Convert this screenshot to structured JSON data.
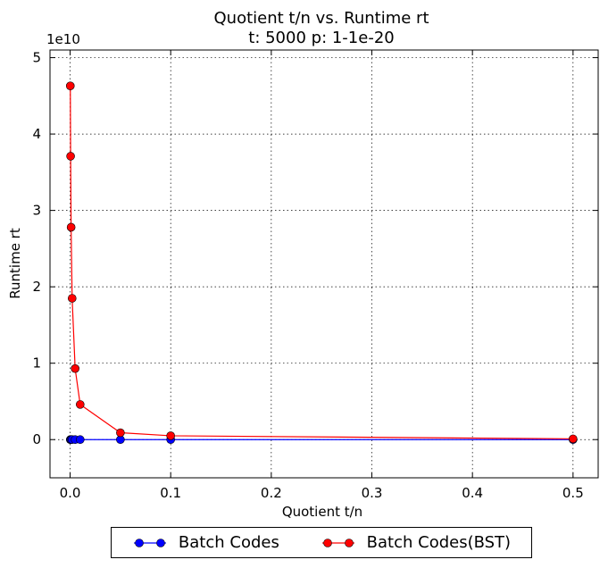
{
  "chart_data": {
    "type": "line",
    "title": "Quotient t/n vs. Runtime rt",
    "subtitle": "t: 5000 p: 1-1e-20",
    "xlabel": "Quotient t/n",
    "ylabel": "Runtime rt",
    "y_offset_label": "1e10",
    "xlim": [
      -0.02,
      0.525
    ],
    "ylim": [
      -0.5,
      5.1
    ],
    "x_ticks": [
      "0.0",
      "0.1",
      "0.2",
      "0.3",
      "0.4",
      "0.5"
    ],
    "y_ticks": [
      "0",
      "1",
      "2",
      "3",
      "4",
      "5"
    ],
    "grid": true,
    "legend_position": "bottom-outside",
    "series": [
      {
        "name": "Batch Codes",
        "color": "#0000ff",
        "x": [
          0.0002,
          0.0005,
          0.001,
          0.002,
          0.005,
          0.01,
          0.05,
          0.1,
          0.5
        ],
        "y": [
          0.0,
          0.0,
          0.0,
          0.0,
          0.0,
          0.0,
          0.0,
          0.0,
          0.0
        ]
      },
      {
        "name": "Batch Codes(BST)",
        "color": "#ff0000",
        "x": [
          0.0002,
          0.0005,
          0.001,
          0.002,
          0.005,
          0.01,
          0.05,
          0.1,
          0.5
        ],
        "y": [
          4.63,
          3.71,
          2.78,
          1.85,
          0.93,
          0.46,
          0.09,
          0.05,
          0.01
        ]
      }
    ]
  }
}
